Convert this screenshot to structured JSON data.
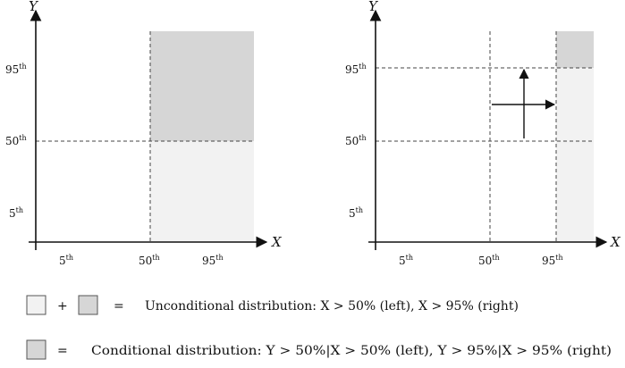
{
  "left_panel": {
    "y_axis_label": "Y",
    "x_axis_label": "X",
    "y_ticks": [
      {
        "base": "95",
        "sup": "th"
      },
      {
        "base": "50",
        "sup": "th"
      },
      {
        "base": "5",
        "sup": "th"
      }
    ],
    "x_ticks": [
      {
        "base": "5",
        "sup": "th"
      },
      {
        "base": "50",
        "sup": "th"
      },
      {
        "base": "95",
        "sup": "th"
      }
    ]
  },
  "right_panel": {
    "y_axis_label": "Y",
    "x_axis_label": "X",
    "y_ticks": [
      {
        "base": "95",
        "sup": "th"
      },
      {
        "base": "50",
        "sup": "th"
      },
      {
        "base": "5",
        "sup": "th"
      }
    ],
    "x_ticks": [
      {
        "base": "5",
        "sup": "th"
      },
      {
        "base": "50",
        "sup": "th"
      },
      {
        "base": "95",
        "sup": "th"
      }
    ]
  },
  "legend": {
    "plus": "+",
    "equals": "=",
    "unconditional_text": "Unconditional distribution: X > 50% (left), X > 95% (right)",
    "conditional_text": "Conditional distribution: Y > 50%|X > 50% (left), Y > 95%|X > 95% (right)"
  },
  "colors": {
    "light_fill": "#f2f2f2",
    "dark_fill": "#d6d6d6",
    "box_stroke": "#555555"
  }
}
